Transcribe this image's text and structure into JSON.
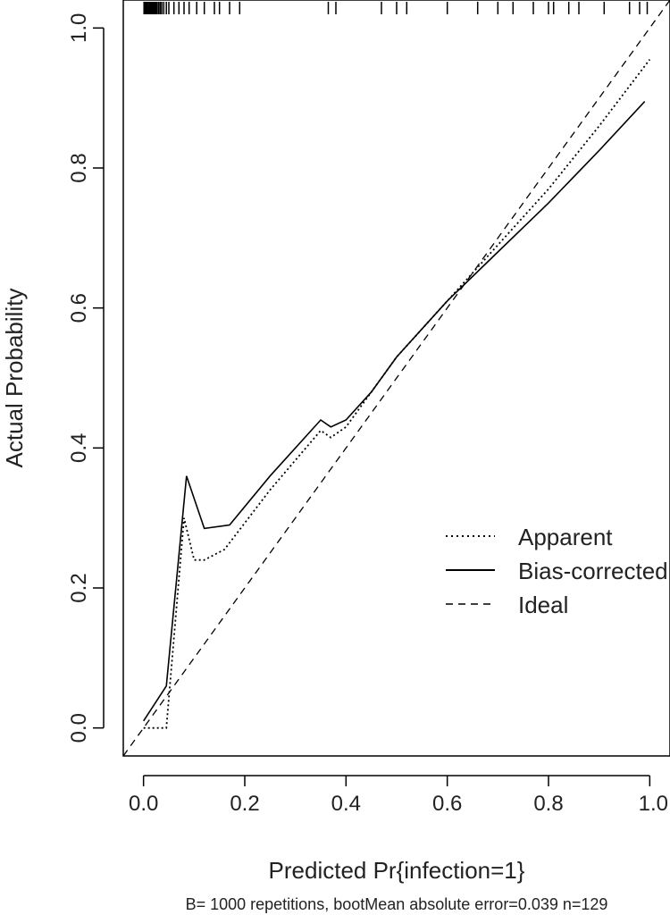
{
  "chart_data": {
    "type": "line",
    "title": "",
    "xlabel": "Predicted Pr{infection=1}",
    "ylabel": "Actual Probability",
    "xlim": [
      -0.04,
      1.04
    ],
    "ylim": [
      -0.04,
      1.04
    ],
    "x_ticks": [
      {
        "value": 0.0,
        "label": "0.0"
      },
      {
        "value": 0.2,
        "label": "0.2"
      },
      {
        "value": 0.4,
        "label": "0.4"
      },
      {
        "value": 0.6,
        "label": "0.6"
      },
      {
        "value": 0.8,
        "label": "0.8"
      },
      {
        "value": 1.0,
        "label": "1.0"
      }
    ],
    "y_ticks": [
      {
        "value": 0.0,
        "label": "0.0"
      },
      {
        "value": 0.2,
        "label": "0.2"
      },
      {
        "value": 0.4,
        "label": "0.4"
      },
      {
        "value": 0.6,
        "label": "0.6"
      },
      {
        "value": 0.8,
        "label": "0.8"
      },
      {
        "value": 1.0,
        "label": "1.0"
      }
    ],
    "grid": false,
    "legend_position": "right",
    "series": [
      {
        "name": "Apparent",
        "line_style": "dotted",
        "x": [
          0.0,
          0.045,
          0.08,
          0.1,
          0.12,
          0.16,
          0.25,
          0.35,
          0.37,
          0.4,
          0.45,
          0.5,
          0.55,
          0.6,
          0.7,
          0.8,
          0.9,
          1.0
        ],
        "y": [
          0.0,
          0.0,
          0.3,
          0.24,
          0.24,
          0.255,
          0.34,
          0.425,
          0.415,
          0.43,
          0.48,
          0.53,
          0.57,
          0.61,
          0.69,
          0.77,
          0.86,
          0.955
        ]
      },
      {
        "name": "Bias-corrected",
        "line_style": "solid",
        "x": [
          0.0,
          0.045,
          0.085,
          0.12,
          0.17,
          0.25,
          0.35,
          0.37,
          0.4,
          0.45,
          0.5,
          0.55,
          0.6,
          0.7,
          0.8,
          0.9,
          0.99
        ],
        "y": [
          0.01,
          0.06,
          0.36,
          0.285,
          0.29,
          0.36,
          0.44,
          0.43,
          0.44,
          0.48,
          0.53,
          0.57,
          0.61,
          0.68,
          0.75,
          0.825,
          0.895
        ]
      },
      {
        "name": "Ideal",
        "line_style": "dashed",
        "x": [
          -0.04,
          1.04
        ],
        "y": [
          -0.04,
          1.04
        ]
      }
    ],
    "rug_x": [
      0.001,
      0.003,
      0.005,
      0.007,
      0.009,
      0.011,
      0.013,
      0.015,
      0.017,
      0.019,
      0.021,
      0.023,
      0.025,
      0.027,
      0.03,
      0.033,
      0.036,
      0.04,
      0.045,
      0.05,
      0.06,
      0.07,
      0.08,
      0.09,
      0.105,
      0.12,
      0.14,
      0.15,
      0.17,
      0.19,
      0.365,
      0.38,
      0.47,
      0.5,
      0.52,
      0.6,
      0.66,
      0.7,
      0.73,
      0.77,
      0.8,
      0.81,
      0.84,
      0.86,
      0.91,
      0.96,
      0.98,
      0.995
    ],
    "footnote": "B= 1000 repetitions, bootMean absolute error=0.039 n=129"
  }
}
